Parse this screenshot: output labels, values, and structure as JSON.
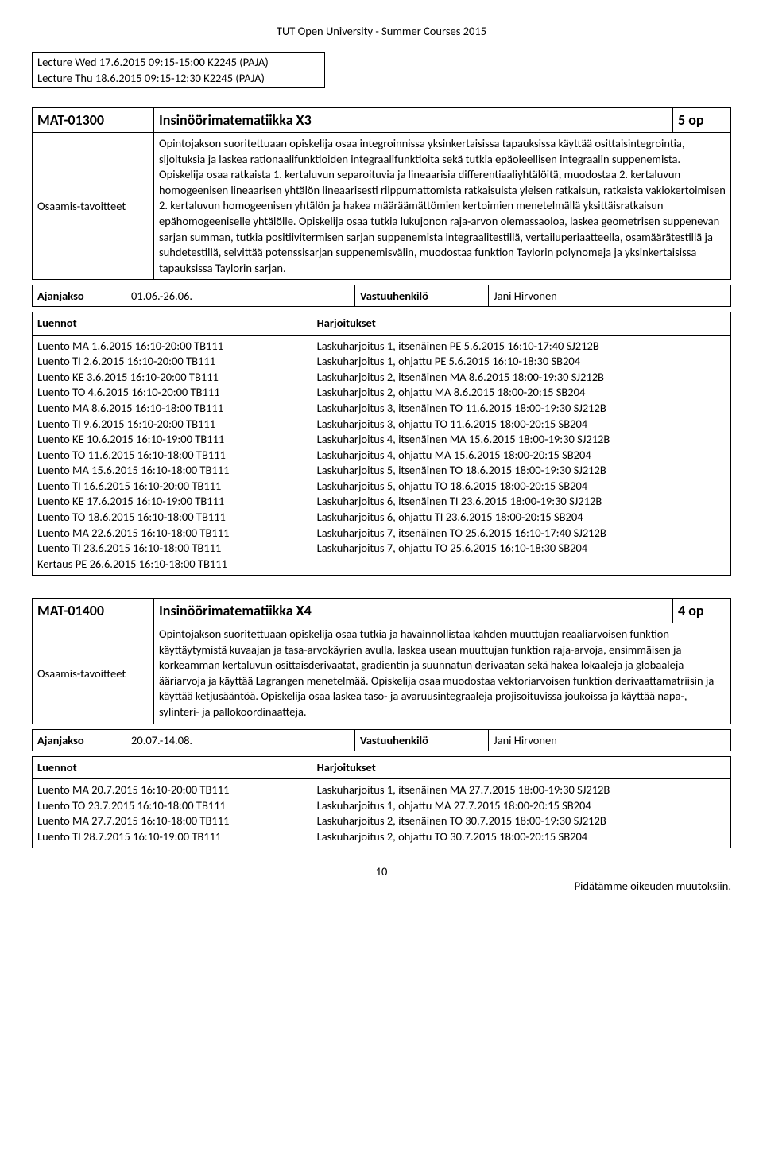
{
  "page_header": "TUT Open University  -  Summer Courses 2015",
  "top_box_lines": [
    "Lecture Wed 17.6.2015 09:15-15:00 K2245 (PAJA)",
    "Lecture Thu 18.6.2015 09:15-12:30 K2245 (PAJA)"
  ],
  "labels": {
    "goals": "Osaamis-tavoitteet",
    "period": "Ajanjakso",
    "responsible": "Vastuuhenkilö",
    "lectures": "Luennot",
    "exercises": "Harjoitukset"
  },
  "course1": {
    "code": "MAT-01300",
    "title": "Insinöörimatematiikka X3",
    "op": "5 op",
    "goals": "Opintojakson suoritettuaan opiskelija osaa integroinnissa yksinkertaisissa tapauksissa käyttää osittaisintegrointia, sijoituksia ja laskea rationaalifunktioiden integraalifunktioita sekä tutkia epäoleellisen integraalin suppenemista. Opiskelija osaa ratkaista 1. kertaluvun separoituvia ja lineaarisia differentiaaliyhtälöitä, muodostaa 2. kertaluvun homogeenisen lineaarisen yhtälön lineaarisesti riippumattomista ratkaisuista yleisen ratkaisun, ratkaista vakiokertoimisen 2. kertaluvun homogeenisen yhtälön ja hakea määräämättömien kertoimien menetelmällä yksittäisratkaisun epähomogeeniselle yhtälölle. Opiskelija osaa tutkia lukujonon raja-arvon olemassaoloa, laskea geometrisen suppenevan sarjan summan, tutkia positiivitermisen sarjan suppenemista integraalitestillä, vertailuperiaatteella, osamäärätestillä ja suhdetestillä, selvittää potenssisarjan suppenemisvälin, muodostaa funktion Taylorin polynomeja ja yksinkertaisissa tapauksissa Taylorin sarjan.",
    "period": "01.06.-26.06.",
    "responsible": "Jani Hirvonen",
    "lectures": [
      "Luento MA 1.6.2015 16:10-20:00 TB111",
      "Luento TI 2.6.2015 16:10-20:00 TB111",
      "Luento KE 3.6.2015 16:10-20:00 TB111",
      "Luento TO 4.6.2015 16:10-20:00 TB111",
      "Luento MA 8.6.2015 16:10-18:00 TB111",
      "Luento TI 9.6.2015 16:10-20:00 TB111",
      "Luento KE 10.6.2015 16:10-19:00 TB111",
      "Luento TO 11.6.2015 16:10-18:00 TB111",
      "Luento MA 15.6.2015 16:10-18:00 TB111",
      "Luento TI 16.6.2015 16:10-20:00 TB111",
      "Luento KE 17.6.2015 16:10-19:00 TB111",
      "Luento TO 18.6.2015 16:10-18:00 TB111",
      "Luento MA 22.6.2015 16:10-18:00 TB111",
      "Luento TI 23.6.2015 16:10-18:00 TB111",
      "Kertaus PE 26.6.2015 16:10-18:00 TB111"
    ],
    "exercises": [
      "Laskuharjoitus 1, itsenäinen PE 5.6.2015 16:10-17:40 SJ212B",
      "Laskuharjoitus 1, ohjattu PE 5.6.2015 16:10-18:30 SB204",
      "Laskuharjoitus 2, itsenäinen MA 8.6.2015 18:00-19:30 SJ212B",
      "Laskuharjoitus 2, ohjattu MA 8.6.2015 18:00-20:15 SB204",
      "Laskuharjoitus 3, itsenäinen TO 11.6.2015 18:00-19:30 SJ212B",
      "Laskuharjoitus 3, ohjattu TO 11.6.2015 18:00-20:15 SB204",
      "Laskuharjoitus 4, itsenäinen MA 15.6.2015 18:00-19:30 SJ212B",
      "Laskuharjoitus 4, ohjattu MA 15.6.2015 18:00-20:15 SB204",
      "Laskuharjoitus 5, itsenäinen TO 18.6.2015 18:00-19:30 SJ212B",
      "Laskuharjoitus 5, ohjattu TO 18.6.2015 18:00-20:15 SB204",
      "Laskuharjoitus 6, itsenäinen TI 23.6.2015 18:00-19:30 SJ212B",
      "Laskuharjoitus 6, ohjattu TI 23.6.2015 18:00-20:15 SB204",
      "Laskuharjoitus 7, itsenäinen TO 25.6.2015 16:10-17:40 SJ212B",
      "Laskuharjoitus 7, ohjattu TO 25.6.2015 16:10-18:30 SB204"
    ]
  },
  "course2": {
    "code": "MAT-01400",
    "title": "Insinöörimatematiikka X4",
    "op": "4 op",
    "goals": "Opintojakson suoritettuaan opiskelija osaa tutkia ja havainnollistaa kahden muuttujan reaaliarvoisen funktion käyttäytymistä kuvaajan ja tasa-arvokäyrien avulla, laskea usean muuttujan funktion raja-arvoja, ensimmäisen ja korkeamman kertaluvun osittaisderivaatat, gradientin ja suunnatun derivaatan sekä hakea lokaaleja ja globaaleja ääriarvoja ja käyttää Lagrangen menetelmää. Opiskelija osaa muodostaa vektoriarvoisen funktion derivaattamatriisin ja käyttää ketjusääntöä. Opiskelija osaa laskea taso- ja avaruusintegraaleja projisoituvissa joukoissa ja käyttää napa-, sylinteri- ja pallokoordinaatteja.",
    "period": "20.07.-14.08.",
    "responsible": "Jani Hirvonen",
    "lectures": [
      "Luento MA 20.7.2015 16:10-20:00 TB111",
      "Luento TO 23.7.2015 16:10-18:00 TB111",
      "Luento MA 27.7.2015 16:10-18:00 TB111",
      "Luento TI 28.7.2015 16:10-19:00 TB111"
    ],
    "exercises": [
      "Laskuharjoitus 1, itsenäinen MA 27.7.2015 18:00-19:30 SJ212B",
      "Laskuharjoitus 1, ohjattu MA 27.7.2015 18:00-20:15 SB204",
      "Laskuharjoitus 2, itsenäinen TO 30.7.2015 18:00-19:30 SJ212B",
      "Laskuharjoitus 2, ohjattu TO 30.7.2015 18:00-20:15 SB204"
    ]
  },
  "footer": {
    "page_num": "10",
    "note": "Pidätämme oikeuden muutoksiin."
  }
}
